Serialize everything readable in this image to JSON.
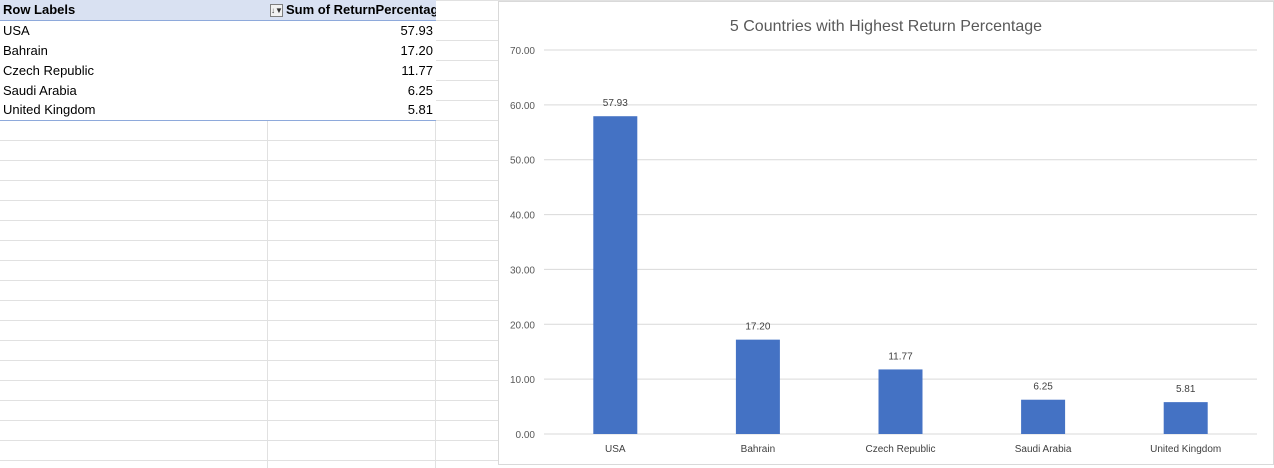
{
  "pivot": {
    "header_row_label": "Row Labels",
    "header_value_label": "Sum of ReturnPercentage",
    "filter_icon": "sort-filter-icon",
    "rows": [
      {
        "label": "USA",
        "value": "57.93"
      },
      {
        "label": "Bahrain",
        "value": "17.20"
      },
      {
        "label": "Czech Republic",
        "value": "11.77"
      },
      {
        "label": "Saudi Arabia",
        "value": "6.25"
      },
      {
        "label": "United Kingdom",
        "value": "5.81"
      }
    ]
  },
  "chart_data": {
    "type": "bar",
    "title": "5 Countries with Highest Return Percentage",
    "categories": [
      "USA",
      "Bahrain",
      "Czech Republic",
      "Saudi Arabia",
      "United Kingdom"
    ],
    "values": [
      57.93,
      17.2,
      11.77,
      6.25,
      5.81
    ],
    "data_labels": [
      "57.93",
      "17.20",
      "11.77",
      "6.25",
      "5.81"
    ],
    "ylim": [
      0,
      70
    ],
    "yticks": [
      "0.00",
      "10.00",
      "20.00",
      "30.00",
      "40.00",
      "50.00",
      "60.00",
      "70.00"
    ],
    "grid": true,
    "legend": "none",
    "bar_color": "#4472c4",
    "gridline_color": "#d9d9d9"
  }
}
